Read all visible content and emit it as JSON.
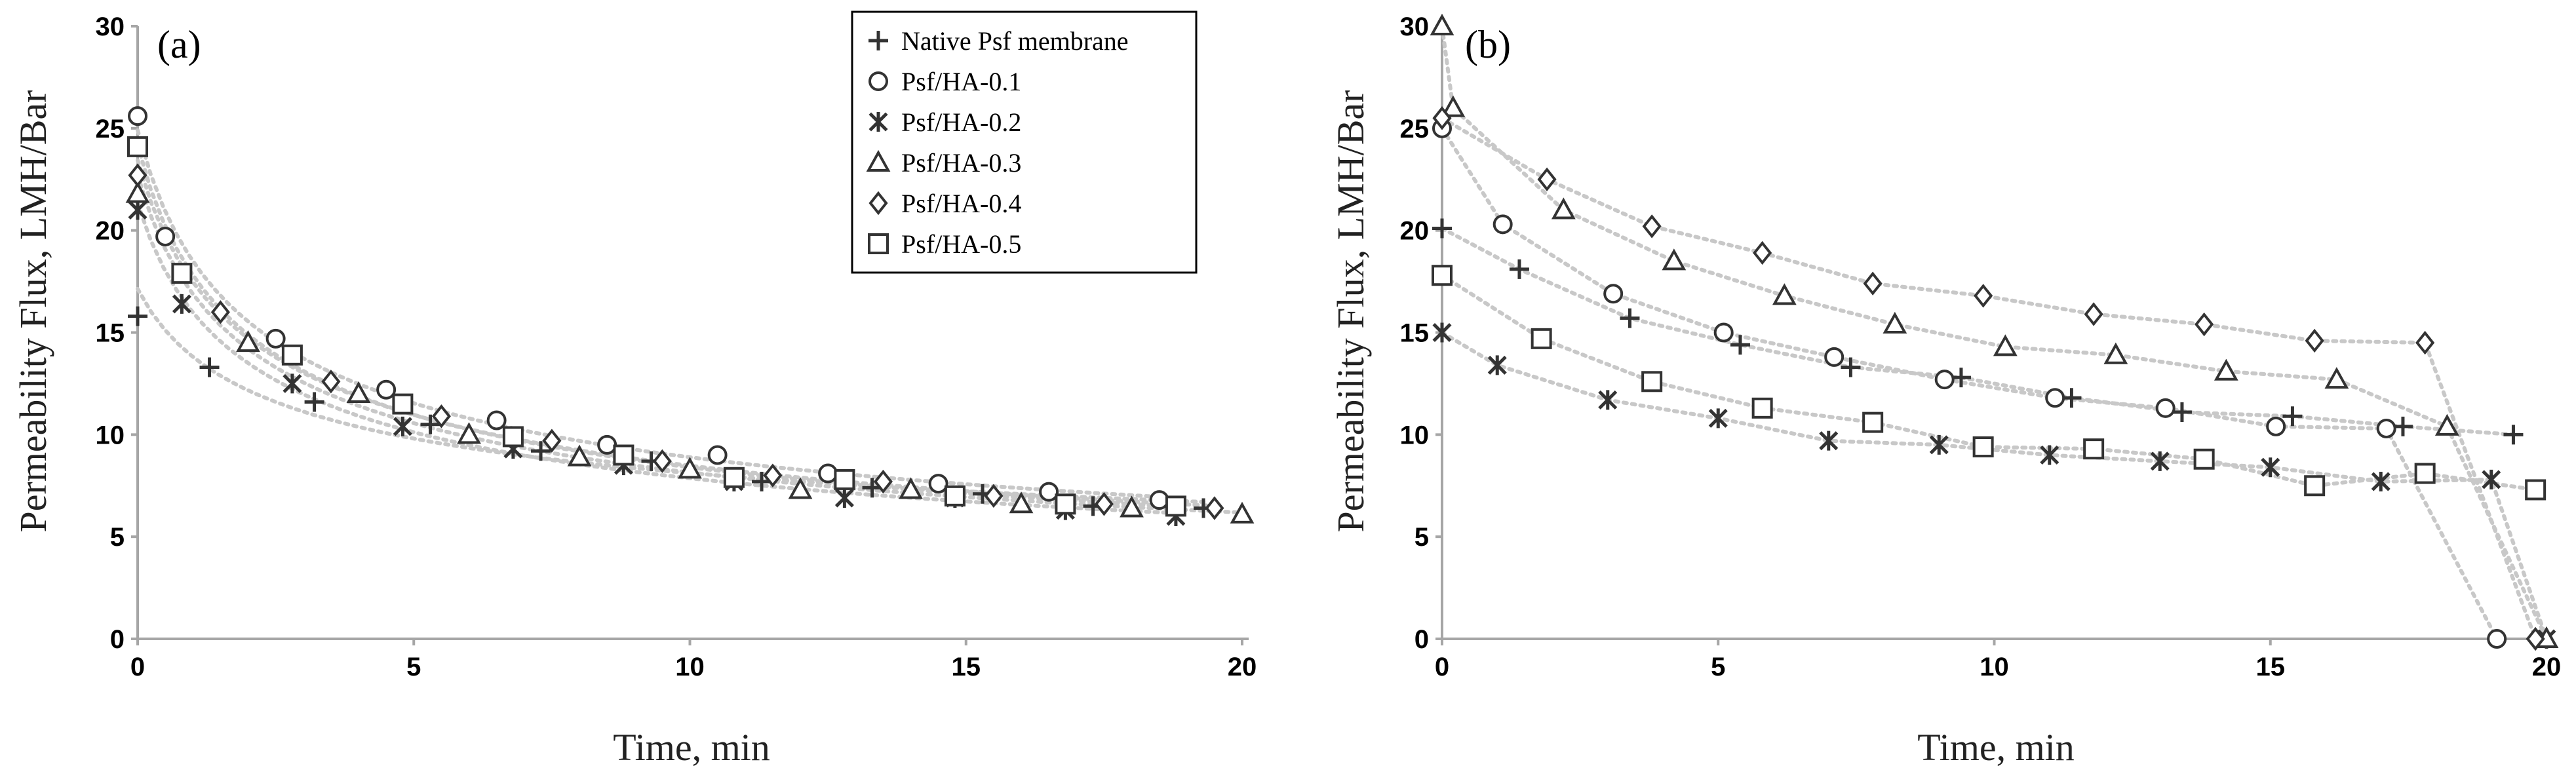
{
  "chart_data": [
    {
      "type": "scatter",
      "panel_label": "(a)",
      "xlabel": "Time, min",
      "ylabel": "Permeability Flux, LMH/Bar",
      "xlim": [
        0,
        20
      ],
      "ylim": [
        0,
        30
      ],
      "xticks": [
        "0",
        "5",
        "10",
        "15",
        "20"
      ],
      "yticks": [
        "0",
        "5",
        "10",
        "15",
        "20",
        "25",
        "30"
      ],
      "legend": {
        "position": "top-right",
        "entries": [
          {
            "label": "Native Psf membrane",
            "marker": "plus"
          },
          {
            "label": "Psf/HA-0.1",
            "marker": "circle"
          },
          {
            "label": "Psf/HA-0.2",
            "marker": "asterisk"
          },
          {
            "label": "Psf/HA-0.3",
            "marker": "triangle"
          },
          {
            "label": "Psf/HA-0.4",
            "marker": "diamond"
          },
          {
            "label": "Psf/HA-0.5",
            "marker": "square"
          }
        ]
      },
      "series": [
        {
          "name": "Native Psf membrane",
          "marker": "plus",
          "x": [
            0,
            1.3,
            3.2,
            5.3,
            7.3,
            9.3,
            11.3,
            13.3,
            15.3,
            17.3,
            19.3
          ],
          "y": [
            15.8,
            13.3,
            11.6,
            10.5,
            9.2,
            8.7,
            7.7,
            7.4,
            7.1,
            6.5,
            6.4
          ]
        },
        {
          "name": "Psf/HA-0.1",
          "marker": "circle",
          "x": [
            0,
            0.5,
            2.5,
            4.5,
            6.5,
            8.5,
            10.5,
            12.5,
            14.5,
            16.5,
            18.5
          ],
          "y": [
            25.6,
            19.7,
            14.7,
            12.2,
            10.7,
            9.5,
            9.0,
            8.1,
            7.6,
            7.2,
            6.8
          ]
        },
        {
          "name": "Psf/HA-0.2",
          "marker": "asterisk",
          "x": [
            0,
            0.8,
            2.8,
            4.8,
            6.8,
            8.8,
            10.8,
            12.8,
            14.8,
            16.8,
            18.8
          ],
          "y": [
            21.0,
            16.4,
            12.5,
            10.4,
            9.3,
            8.5,
            7.7,
            6.9,
            6.9,
            6.3,
            6.0
          ]
        },
        {
          "name": "Psf/HA-0.3",
          "marker": "triangle",
          "fill": "#b8cce4",
          "x": [
            0,
            2,
            4,
            6,
            8,
            10,
            12,
            14,
            16,
            18,
            20
          ],
          "y": [
            21.8,
            14.5,
            12.0,
            10.0,
            8.9,
            8.3,
            7.3,
            7.3,
            6.6,
            6.4,
            6.1
          ]
        },
        {
          "name": "Psf/HA-0.4",
          "marker": "diamond",
          "x": [
            0,
            1.5,
            3.5,
            5.5,
            7.5,
            9.5,
            11.5,
            13.5,
            15.5,
            17.5,
            19.5
          ],
          "y": [
            22.7,
            16.0,
            12.6,
            10.9,
            9.7,
            8.7,
            8.0,
            7.7,
            7.0,
            6.6,
            6.4
          ]
        },
        {
          "name": "Psf/HA-0.5",
          "marker": "square",
          "x": [
            0,
            0.8,
            2.8,
            4.8,
            6.8,
            8.8,
            10.8,
            12.8,
            14.8,
            16.8,
            18.8
          ],
          "y": [
            24.1,
            17.9,
            13.9,
            11.5,
            9.9,
            9.0,
            7.9,
            7.8,
            7.0,
            6.6,
            6.5
          ]
        }
      ]
    },
    {
      "type": "line",
      "panel_label": "(b)",
      "xlabel": "Time, min",
      "ylabel": "Permeability Flux, LMH/Bar",
      "xlim": [
        0,
        20
      ],
      "ylim": [
        0,
        30
      ],
      "xticks": [
        "0",
        "5",
        "10",
        "15",
        "20"
      ],
      "yticks": [
        "0",
        "5",
        "10",
        "15",
        "20",
        "25",
        "30"
      ],
      "series": [
        {
          "name": "Native Psf membrane",
          "marker": "plus",
          "x": [
            0,
            1.4,
            3.4,
            5.4,
            7.4,
            9.4,
            11.4,
            13.4,
            15.4,
            17.4,
            19.4
          ],
          "y": [
            20.1,
            18.1,
            15.7,
            14.4,
            13.3,
            12.8,
            11.8,
            11.1,
            10.9,
            10.4,
            10.0
          ]
        },
        {
          "name": "Psf/HA-0.1",
          "marker": "circle",
          "x": [
            0,
            1.1,
            3.1,
            5.1,
            7.1,
            9.1,
            11.1,
            13.1,
            15.1,
            17.1,
            19.1
          ],
          "y": [
            25.0,
            20.3,
            16.9,
            15.0,
            13.8,
            12.7,
            11.8,
            11.3,
            10.4,
            10.3,
            0
          ]
        },
        {
          "name": "Psf/HA-0.2",
          "marker": "asterisk",
          "x": [
            0,
            1.0,
            3.0,
            5.0,
            7.0,
            9.0,
            11.0,
            13.0,
            15.0,
            17.0,
            19.0,
            20.0
          ],
          "y": [
            15.0,
            13.4,
            11.7,
            10.8,
            9.7,
            9.5,
            9.0,
            8.7,
            8.4,
            7.7,
            7.8,
            0
          ]
        },
        {
          "name": "Psf/HA-0.3",
          "marker": "triangle",
          "x": [
            0,
            0.2,
            2.2,
            4.2,
            6.2,
            8.2,
            10.2,
            12.2,
            14.2,
            16.2,
            18.2,
            20.0
          ],
          "y": [
            30.0,
            26.0,
            21.0,
            18.5,
            16.8,
            15.4,
            14.3,
            13.9,
            13.1,
            12.7,
            10.4,
            0
          ]
        },
        {
          "name": "Psf/HA-0.4",
          "marker": "diamond",
          "x": [
            0,
            1.9,
            3.8,
            5.8,
            7.8,
            9.8,
            11.8,
            13.8,
            15.8,
            17.8,
            19.8
          ],
          "y": [
            25.5,
            22.5,
            20.2,
            18.9,
            17.4,
            16.8,
            15.9,
            15.4,
            14.6,
            14.5,
            0
          ]
        },
        {
          "name": "Psf/HA-0.5",
          "marker": "square",
          "x": [
            0,
            1.8,
            3.8,
            5.8,
            7.8,
            9.8,
            11.8,
            13.8,
            15.8,
            17.8,
            19.8
          ],
          "y": [
            17.8,
            14.7,
            12.6,
            11.3,
            10.6,
            9.4,
            9.3,
            8.8,
            7.5,
            8.1,
            7.3
          ]
        }
      ]
    }
  ]
}
